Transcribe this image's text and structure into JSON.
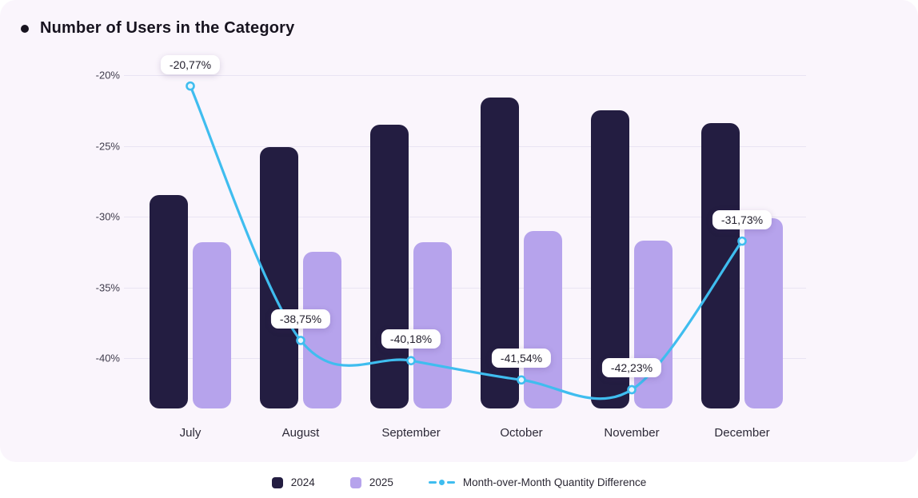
{
  "title": "Number of Users in the Category",
  "chart_data": {
    "type": "bar",
    "title": "Number of Users in the Category",
    "categories": [
      "July",
      "August",
      "September",
      "October",
      "November",
      "December"
    ],
    "series": [
      {
        "name": "2024",
        "type": "bar",
        "color": "#231d41",
        "values": [
          -28.5,
          -25.1,
          -23.5,
          -21.6,
          -22.5,
          -23.4
        ]
      },
      {
        "name": "2025",
        "type": "bar",
        "color": "#b6a3ec",
        "values": [
          -31.8,
          -32.5,
          -31.8,
          -31.0,
          -31.7,
          -30.1
        ]
      },
      {
        "name": "Month-over-Month Quantity Difference",
        "type": "line",
        "color": "#3fbdef",
        "values": [
          -20.77,
          -38.75,
          -40.18,
          -41.54,
          -42.23,
          -31.73
        ],
        "point_labels": [
          "-20,77%",
          "-38,75%",
          "-40,18%",
          "-41,54%",
          "-42,23%",
          "-31,73%"
        ]
      }
    ],
    "y_ticks": [
      {
        "label": "-20%",
        "value": -20
      },
      {
        "label": "-25%",
        "value": -25
      },
      {
        "label": "-30%",
        "value": -30
      },
      {
        "label": "-35%",
        "value": -35
      },
      {
        "label": "-40%",
        "value": -40
      }
    ],
    "ylim": [
      -43.7,
      -19.8
    ],
    "grid": "horizontal",
    "legend_position": "bottom"
  },
  "legend": {
    "items": [
      {
        "label": "2024",
        "marker": "square",
        "color": "#231d41"
      },
      {
        "label": "2025",
        "marker": "square",
        "color": "#b6a3ec"
      },
      {
        "label": "Month-over-Month Quantity Difference",
        "marker": "dash-dot-line",
        "color": "#3fbdef"
      }
    ]
  }
}
